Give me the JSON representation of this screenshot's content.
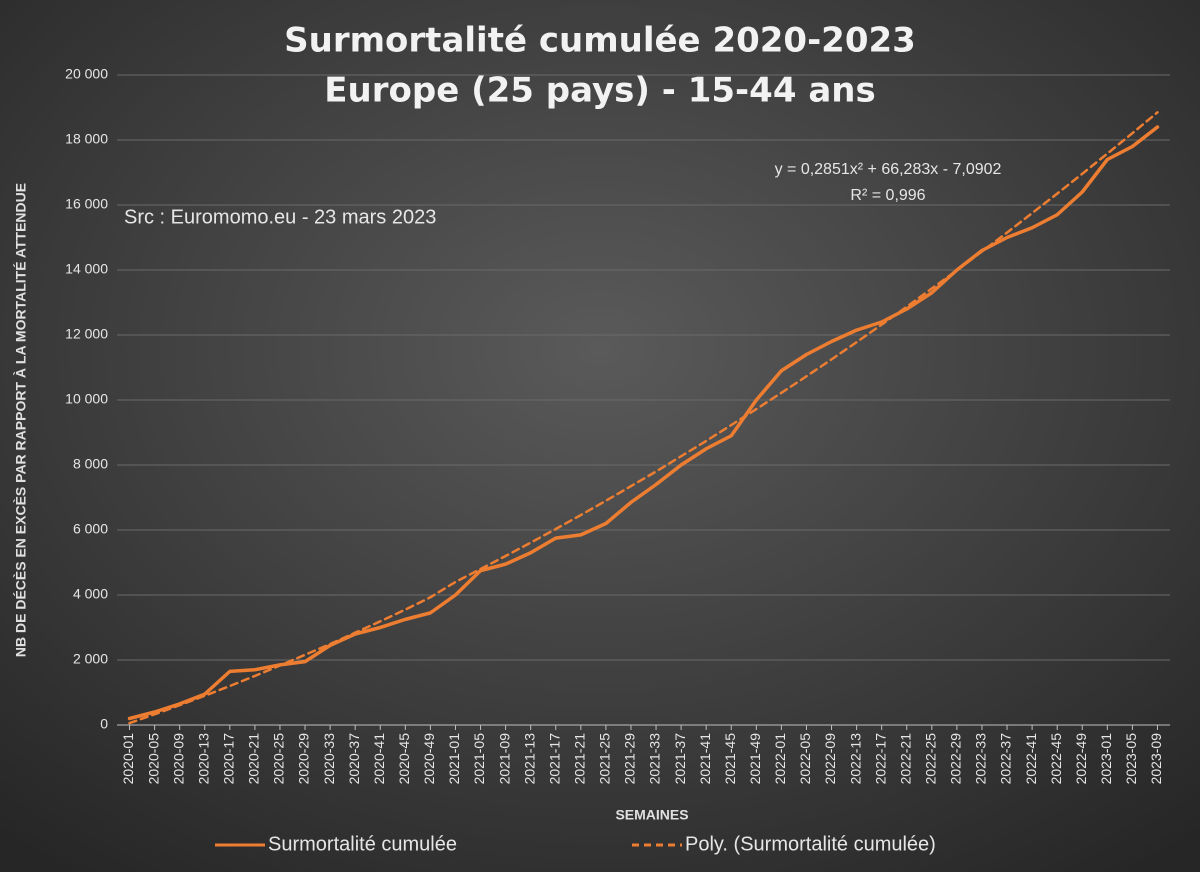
{
  "chart_data": {
    "type": "line",
    "title": "Surmortalité cumulée 2020-2023",
    "subtitle": "Europe (25 pays) - 15-44 ans",
    "source": "Src : Euromomo.eu  - 23 mars 2023",
    "equation": "y = 0,2851x² + 66,283x - 7,0902",
    "r_squared": "R² = 0,996",
    "x_label": "SEMAINES",
    "y_label": "NB DE DÉCÈS EN EXCÈS PAR RAPPORT À LA MORTALITÉ ATTENDUE",
    "categories": [
      "2020-01",
      "2020-05",
      "2020-09",
      "2020-13",
      "2020-17",
      "2020-21",
      "2020-25",
      "2020-29",
      "2020-33",
      "2020-37",
      "2020-41",
      "2020-45",
      "2020-49",
      "2021-01",
      "2021-05",
      "2021-09",
      "2021-13",
      "2021-17",
      "2021-21",
      "2021-25",
      "2021-29",
      "2021-33",
      "2021-37",
      "2021-41",
      "2021-45",
      "2021-49",
      "2022-01",
      "2022-05",
      "2022-09",
      "2022-13",
      "2022-17",
      "2022-21",
      "2022-25",
      "2022-29",
      "2022-33",
      "2022-37",
      "2022-41",
      "2022-45",
      "2022-49",
      "2023-01",
      "2023-05",
      "2023-09"
    ],
    "series": [
      {
        "name": "Surmortalité cumulée",
        "color": "#ed7d31",
        "dashed": false,
        "values": [
          200,
          400,
          650,
          950,
          1650,
          1700,
          1850,
          1950,
          2450,
          2800,
          3000,
          3250,
          3450,
          4000,
          4750,
          4950,
          5300,
          5750,
          5850,
          6200,
          6850,
          7400,
          8000,
          8500,
          8900,
          10000,
          10900,
          11400,
          11800,
          12150,
          12400,
          12800,
          13300,
          14000,
          14600,
          15000,
          15300,
          15700,
          16400,
          17400,
          17800,
          18400
        ]
      },
      {
        "name": "Poly. (Surmortalité cumulée)",
        "color": "#ed7d31",
        "dashed": true,
        "values": [
          59,
          330,
          610,
          900,
          1200,
          1510,
          1830,
          2160,
          2490,
          2840,
          3190,
          3550,
          3930,
          4400,
          4800,
          5200,
          5610,
          6030,
          6460,
          6900,
          7350,
          7800,
          8270,
          8740,
          9230,
          9720,
          10220,
          10730,
          11250,
          11780,
          12320,
          12870,
          13430,
          13990,
          14570,
          15150,
          15750,
          16350,
          16960,
          17580,
          18210,
          18850
        ]
      }
    ],
    "ylim": [
      0,
      20000
    ],
    "yticks": [
      {
        "value": 0,
        "label": "0"
      },
      {
        "value": 2000,
        "label": "2 000"
      },
      {
        "value": 4000,
        "label": "4 000"
      },
      {
        "value": 6000,
        "label": "6 000"
      },
      {
        "value": 8000,
        "label": "8 000"
      },
      {
        "value": 10000,
        "label": "10 000"
      },
      {
        "value": 12000,
        "label": "12 000"
      },
      {
        "value": 14000,
        "label": "14 000"
      },
      {
        "value": 16000,
        "label": "16 000"
      },
      {
        "value": 18000,
        "label": "18 000"
      },
      {
        "value": 20000,
        "label": "20 000"
      }
    ],
    "grid": true
  }
}
